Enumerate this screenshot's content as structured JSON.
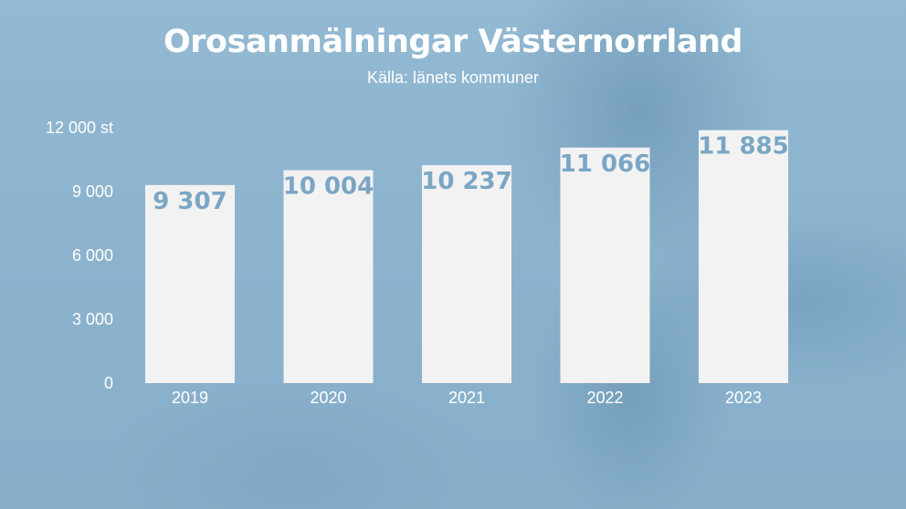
{
  "chart_data": {
    "type": "bar",
    "title": "Orosanmälningar Västernorrland",
    "subtitle": "Källa: länets kommuner",
    "categories": [
      "2019",
      "2020",
      "2021",
      "2022",
      "2023"
    ],
    "values": [
      9307,
      10004,
      10237,
      11066,
      11885
    ],
    "value_labels": [
      "9 307",
      "10 004",
      "10 237",
      "11 066",
      "11 885"
    ],
    "ylim": [
      0,
      12000
    ],
    "yticks": [
      0,
      3000,
      6000,
      9000,
      12000
    ],
    "ytick_labels": [
      "0",
      "3 000",
      "6 000",
      "9 000",
      "12 000 st"
    ],
    "xlabel": "",
    "ylabel": "",
    "grid": false,
    "colors": {
      "bar": "#f2f2f2",
      "value_label": "#7aa6c4",
      "background": "#8cb4cf",
      "text": "#ffffff"
    }
  }
}
